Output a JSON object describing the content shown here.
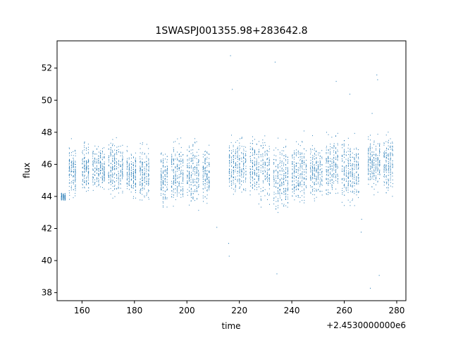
{
  "chart_data": {
    "type": "scatter",
    "title": "1SWASPJ001355.98+283642.8",
    "xlabel": "time",
    "ylabel": "flux",
    "x_offset_label": "+2.4530000000e6",
    "xlim": [
      150.5,
      283.5
    ],
    "ylim": [
      37.5,
      53.7
    ],
    "xticks": [
      160,
      180,
      200,
      220,
      240,
      260,
      280
    ],
    "yticks": [
      38,
      40,
      42,
      44,
      46,
      48,
      50,
      52
    ],
    "grid": false,
    "legend": "none",
    "point_color": "#1f77b4",
    "segments": [
      {
        "x": [
          152,
          154
        ],
        "y": [
          43.7,
          44.3
        ]
      },
      {
        "x": [
          155,
          158
        ],
        "y": [
          43.5,
          47.8
        ]
      },
      {
        "x": [
          160,
          163
        ],
        "y": [
          43.8,
          47.8
        ]
      },
      {
        "x": [
          164,
          169
        ],
        "y": [
          43.9,
          47.6
        ]
      },
      {
        "x": [
          170,
          176
        ],
        "y": [
          43.7,
          47.9
        ]
      },
      {
        "x": [
          177,
          181
        ],
        "y": [
          43.4,
          47.7
        ]
      },
      {
        "x": [
          182,
          186
        ],
        "y": [
          43.2,
          47.8
        ]
      },
      {
        "x": [
          190,
          193
        ],
        "y": [
          42.9,
          47.5
        ]
      },
      {
        "x": [
          194,
          199
        ],
        "y": [
          42.7,
          48.1
        ]
      },
      {
        "x": [
          200,
          205
        ],
        "y": [
          42.9,
          47.9
        ]
      },
      {
        "x": [
          206,
          209
        ],
        "y": [
          43.3,
          47.6
        ]
      },
      {
        "x": [
          216,
          223
        ],
        "y": [
          43.6,
          48.2
        ]
      },
      {
        "x": [
          224,
          232
        ],
        "y": [
          43.2,
          48.4
        ]
      },
      {
        "x": [
          233,
          239
        ],
        "y": [
          42.4,
          48.0
        ]
      },
      {
        "x": [
          240,
          246
        ],
        "y": [
          42.9,
          48.2
        ]
      },
      {
        "x": [
          247,
          252
        ],
        "y": [
          43.4,
          47.9
        ]
      },
      {
        "x": [
          253,
          258
        ],
        "y": [
          43.5,
          48.4
        ]
      },
      {
        "x": [
          259,
          266
        ],
        "y": [
          42.9,
          48.1
        ]
      },
      {
        "x": [
          269,
          274
        ],
        "y": [
          43.8,
          48.4
        ]
      },
      {
        "x": [
          275,
          279
        ],
        "y": [
          43.6,
          48.6
        ]
      }
    ],
    "outliers": [
      {
        "x": 216.5,
        "y": 52.8
      },
      {
        "x": 217.2,
        "y": 50.7
      },
      {
        "x": 216.0,
        "y": 40.3
      },
      {
        "x": 215.8,
        "y": 41.1
      },
      {
        "x": 233.5,
        "y": 52.4
      },
      {
        "x": 234.2,
        "y": 39.2
      },
      {
        "x": 256.8,
        "y": 51.2
      },
      {
        "x": 262.0,
        "y": 50.4
      },
      {
        "x": 266.3,
        "y": 41.8
      },
      {
        "x": 266.5,
        "y": 42.6
      },
      {
        "x": 269.8,
        "y": 38.3
      },
      {
        "x": 272.3,
        "y": 51.6
      },
      {
        "x": 272.6,
        "y": 51.3
      },
      {
        "x": 270.5,
        "y": 49.2
      },
      {
        "x": 273.2,
        "y": 39.1
      },
      {
        "x": 211.3,
        "y": 42.1
      }
    ]
  }
}
